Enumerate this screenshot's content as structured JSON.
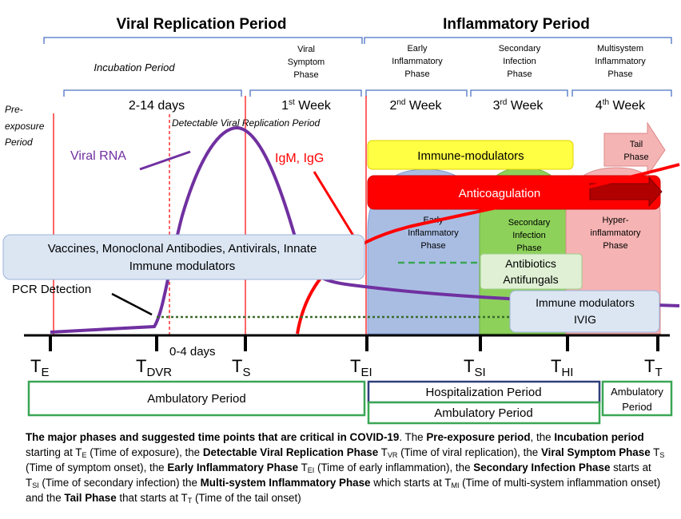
{
  "headers": {
    "viral_period": "Viral Replication Period",
    "inflammatory_period": "Inflammatory Period"
  },
  "sub_phases": {
    "incubation": "Incubation Period",
    "viral_symptom_l1": "Viral",
    "viral_symptom_l2": "Symptom",
    "viral_symptom_l3": "Phase",
    "early_infl_l1": "Early",
    "early_infl_l2": "Inflammatory",
    "early_infl_l3": "Phase",
    "secondary_l1": "Secondary",
    "secondary_l2": "Infection",
    "secondary_l3": "Phase",
    "multisystem_l1": "Multisystem",
    "multisystem_l2": "Inflammatory",
    "multisystem_l3": "Phase"
  },
  "timing": {
    "days_2_14": "2-14 days",
    "week1_num": "1",
    "week1_sup": "st",
    "week2_num": "2",
    "week2_sup": "nd",
    "week3_num": "3",
    "week3_sup": "rd",
    "week4_num": "4",
    "week4_sup": "th",
    "week_word": " Week",
    "days_0_4": "0-4 days"
  },
  "labels": {
    "pre_exposure_l1": "Pre-",
    "pre_exposure_l2": "exposure",
    "pre_exposure_l3": "Period",
    "detectable": "Detectable Viral Replication Period",
    "viral_rna": "Viral RNA",
    "igm_igg": "IgM, IgG",
    "pcr": "PCR Detection",
    "tail_l1": "Tail",
    "tail_l2": "Phase"
  },
  "boxes": {
    "immune_modulators_top": "Immune-modulators",
    "anticoagulation": "Anticoagulation",
    "vaccines_l1": "Vaccines, Monoclonal Antibodies, Antivirals, Innate",
    "vaccines_l2": "Immune modulators",
    "antibiotics": "Antibiotics",
    "antifungals": "Antifungals",
    "immune_mod_l1": "Immune modulators",
    "ivig": "IVIG",
    "early_dome_l1": "Early",
    "early_dome_l2": "Inflammatory",
    "early_dome_l3": "Phase",
    "sec_dome_l1": "Secondary",
    "sec_dome_l2": "Infection",
    "sec_dome_l3": "Phase",
    "hyper_l1": "Hyper-",
    "hyper_l2": "inflammatory",
    "hyper_l3": "Phase"
  },
  "timepoints": {
    "te": "T",
    "te_sub": "E",
    "tdvr": "T",
    "tdvr_sub": "DVR",
    "ts": "T",
    "ts_sub": "S",
    "tei": "T",
    "tei_sub": "EI",
    "tsi": "T",
    "tsi_sub": "SI",
    "thi": "T",
    "thi_sub": "HI",
    "tt": "T",
    "tt_sub": "T"
  },
  "periods": {
    "ambulatory_1": "Ambulatory Period",
    "hospitalization": "Hospitalization Period",
    "ambulatory_2": "Ambulatory Period",
    "ambulatory_3_l1": "Ambulatory",
    "ambulatory_3_l2": "Period"
  },
  "caption": {
    "lead": "The major phases and suggested time points that are critical in COVID-19",
    "t1": ". The ",
    "b1": "Pre-exposure period",
    "t2": ", the ",
    "b2": "Incubation period",
    "t3": " starting at T",
    "s3": "E",
    "t4": " (Time of exposure), the ",
    "b4": "Detectable Viral Replication Phase",
    "t5": " T",
    "s5": "VR",
    "t6": " (Time of viral replication), the ",
    "b6": "Viral Symptom Phase",
    "t7": " T",
    "s7": "S",
    "t8": " (Time of symptom onset), the ",
    "b8": "Early Inflammatory Phase",
    "t9": " T",
    "s9": "EI",
    "t10": " (Time of early inflammation), the ",
    "b10": "Secondary Infection Phase",
    "t11": " starts at T",
    "s11": "SI",
    "t12": " (Time of secondary infection) the ",
    "b12": "Multi-system Inflammatory Phase",
    "t13": " which starts at T",
    "s13": "MI",
    "t14": " (Time of multi-system inflammation onset) and the ",
    "b14": "Tail Phase",
    "t15": " that starts at T",
    "s15": "T",
    "t16": " (Time of the tail onset)"
  },
  "colors": {
    "bracket_blue": "#4a72c4",
    "viral_purple": "#7030a0",
    "red": "#ff0000",
    "green_border": "#3aa655",
    "navy_border": "#2f3f7a",
    "yellow": "#ffff44",
    "blue_dome": "#a9bde3",
    "green_dome": "#8dd15a",
    "pink_dome": "#f6b3b3",
    "light_box": "#dce6f3"
  }
}
